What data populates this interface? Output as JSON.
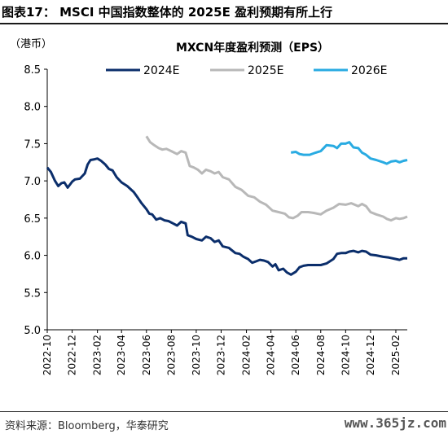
{
  "header": {
    "title": "图表17： MSCI 中国指数整体的 2025E 盈利预期有所上行"
  },
  "footer": {
    "source": "资料来源：Bloomberg，华泰研究",
    "watermark": "www.365jz.com"
  },
  "chart_data": {
    "type": "line",
    "title": "MXCN年度盈利预测（EPS）",
    "unit": "（港币）",
    "ylim": [
      5.0,
      8.5
    ],
    "yticks": [
      "5.0",
      "5.5",
      "6.0",
      "6.5",
      "7.0",
      "7.5",
      "8.0",
      "8.5"
    ],
    "xticks": [
      "2022-10",
      "2022-12",
      "2023-02",
      "2023-04",
      "2023-06",
      "2023-08",
      "2023-10",
      "2023-12",
      "2024-02",
      "2024-04",
      "2024-06",
      "2024-08",
      "2024-10",
      "2024-12",
      "2025-02"
    ],
    "xrange": [
      "2022-10-01",
      "2025-03-01"
    ],
    "legend_position": "top",
    "series": [
      {
        "name": "2024E",
        "color": "#0b2e6b",
        "points": [
          [
            "2022-10-01",
            7.18
          ],
          [
            "2022-10-10",
            7.12
          ],
          [
            "2022-10-20",
            7.0
          ],
          [
            "2022-10-28",
            6.93
          ],
          [
            "2022-11-05",
            6.97
          ],
          [
            "2022-11-12",
            6.98
          ],
          [
            "2022-11-20",
            6.91
          ],
          [
            "2022-12-01",
            6.99
          ],
          [
            "2022-12-08",
            7.02
          ],
          [
            "2022-12-20",
            7.03
          ],
          [
            "2023-01-01",
            7.1
          ],
          [
            "2023-01-08",
            7.22
          ],
          [
            "2023-01-15",
            7.28
          ],
          [
            "2023-01-25",
            7.29
          ],
          [
            "2023-02-01",
            7.3
          ],
          [
            "2023-02-10",
            7.27
          ],
          [
            "2023-02-20",
            7.22
          ],
          [
            "2023-03-01",
            7.16
          ],
          [
            "2023-03-10",
            7.14
          ],
          [
            "2023-03-20",
            7.05
          ],
          [
            "2023-04-01",
            6.98
          ],
          [
            "2023-04-15",
            6.93
          ],
          [
            "2023-05-01",
            6.85
          ],
          [
            "2023-05-10",
            6.78
          ],
          [
            "2023-05-20",
            6.7
          ],
          [
            "2023-06-01",
            6.62
          ],
          [
            "2023-06-08",
            6.56
          ],
          [
            "2023-06-15",
            6.55
          ],
          [
            "2023-06-25",
            6.48
          ],
          [
            "2023-07-05",
            6.5
          ],
          [
            "2023-07-15",
            6.47
          ],
          [
            "2023-07-25",
            6.46
          ],
          [
            "2023-08-05",
            6.43
          ],
          [
            "2023-08-15",
            6.4
          ],
          [
            "2023-08-25",
            6.45
          ],
          [
            "2023-09-05",
            6.43
          ],
          [
            "2023-09-10",
            6.27
          ],
          [
            "2023-09-20",
            6.25
          ],
          [
            "2023-10-01",
            6.22
          ],
          [
            "2023-10-15",
            6.2
          ],
          [
            "2023-10-25",
            6.25
          ],
          [
            "2023-11-05",
            6.23
          ],
          [
            "2023-11-15",
            6.18
          ],
          [
            "2023-11-25",
            6.2
          ],
          [
            "2023-12-05",
            6.12
          ],
          [
            "2023-12-20",
            6.1
          ],
          [
            "2024-01-05",
            6.03
          ],
          [
            "2024-01-15",
            6.02
          ],
          [
            "2024-01-25",
            5.98
          ],
          [
            "2024-02-05",
            5.95
          ],
          [
            "2024-02-15",
            5.9
          ],
          [
            "2024-02-25",
            5.92
          ],
          [
            "2024-03-05",
            5.94
          ],
          [
            "2024-03-15",
            5.93
          ],
          [
            "2024-03-25",
            5.91
          ],
          [
            "2024-04-05",
            5.85
          ],
          [
            "2024-04-12",
            5.88
          ],
          [
            "2024-04-20",
            5.8
          ],
          [
            "2024-05-01",
            5.82
          ],
          [
            "2024-05-10",
            5.77
          ],
          [
            "2024-05-20",
            5.74
          ],
          [
            "2024-06-01",
            5.78
          ],
          [
            "2024-06-10",
            5.84
          ],
          [
            "2024-06-20",
            5.86
          ],
          [
            "2024-07-01",
            5.87
          ],
          [
            "2024-07-15",
            5.87
          ],
          [
            "2024-08-01",
            5.87
          ],
          [
            "2024-08-15",
            5.89
          ],
          [
            "2024-09-01",
            5.95
          ],
          [
            "2024-09-10",
            6.02
          ],
          [
            "2024-09-20",
            6.03
          ],
          [
            "2024-10-01",
            6.03
          ],
          [
            "2024-10-10",
            6.05
          ],
          [
            "2024-10-20",
            6.06
          ],
          [
            "2024-11-01",
            6.04
          ],
          [
            "2024-11-10",
            6.06
          ],
          [
            "2024-11-20",
            6.05
          ],
          [
            "2024-12-01",
            6.01
          ],
          [
            "2024-12-15",
            6.0
          ],
          [
            "2025-01-01",
            5.98
          ],
          [
            "2025-01-15",
            5.97
          ],
          [
            "2025-02-01",
            5.95
          ],
          [
            "2025-02-10",
            5.94
          ],
          [
            "2025-02-20",
            5.96
          ],
          [
            "2025-03-01",
            5.96
          ]
        ]
      },
      {
        "name": "2025E",
        "color": "#b8b8b8",
        "points": [
          [
            "2023-06-01",
            7.6
          ],
          [
            "2023-06-10",
            7.52
          ],
          [
            "2023-06-20",
            7.48
          ],
          [
            "2023-07-01",
            7.44
          ],
          [
            "2023-07-10",
            7.42
          ],
          [
            "2023-07-20",
            7.43
          ],
          [
            "2023-08-01",
            7.4
          ],
          [
            "2023-08-15",
            7.36
          ],
          [
            "2023-08-25",
            7.4
          ],
          [
            "2023-09-05",
            7.38
          ],
          [
            "2023-09-15",
            7.2
          ],
          [
            "2023-09-25",
            7.18
          ],
          [
            "2023-10-05",
            7.15
          ],
          [
            "2023-10-15",
            7.1
          ],
          [
            "2023-10-25",
            7.15
          ],
          [
            "2023-11-05",
            7.13
          ],
          [
            "2023-11-15",
            7.1
          ],
          [
            "2023-11-25",
            7.12
          ],
          [
            "2023-12-05",
            7.05
          ],
          [
            "2023-12-20",
            7.02
          ],
          [
            "2024-01-05",
            6.92
          ],
          [
            "2024-01-20",
            6.88
          ],
          [
            "2024-02-05",
            6.8
          ],
          [
            "2024-02-20",
            6.78
          ],
          [
            "2024-03-05",
            6.72
          ],
          [
            "2024-03-20",
            6.68
          ],
          [
            "2024-04-05",
            6.6
          ],
          [
            "2024-04-20",
            6.58
          ],
          [
            "2024-05-05",
            6.56
          ],
          [
            "2024-05-15",
            6.51
          ],
          [
            "2024-05-25",
            6.5
          ],
          [
            "2024-06-05",
            6.53
          ],
          [
            "2024-06-15",
            6.58
          ],
          [
            "2024-07-01",
            6.58
          ],
          [
            "2024-07-15",
            6.57
          ],
          [
            "2024-08-01",
            6.55
          ],
          [
            "2024-08-15",
            6.6
          ],
          [
            "2024-09-01",
            6.64
          ],
          [
            "2024-09-15",
            6.69
          ],
          [
            "2024-10-01",
            6.68
          ],
          [
            "2024-10-15",
            6.7
          ],
          [
            "2024-11-01",
            6.66
          ],
          [
            "2024-11-10",
            6.69
          ],
          [
            "2024-11-20",
            6.66
          ],
          [
            "2024-12-01",
            6.58
          ],
          [
            "2024-12-15",
            6.55
          ],
          [
            "2025-01-01",
            6.52
          ],
          [
            "2025-01-10",
            6.49
          ],
          [
            "2025-01-20",
            6.47
          ],
          [
            "2025-02-01",
            6.5
          ],
          [
            "2025-02-10",
            6.49
          ],
          [
            "2025-02-20",
            6.5
          ],
          [
            "2025-03-01",
            6.52
          ]
        ]
      },
      {
        "name": "2026E",
        "color": "#29abe2",
        "points": [
          [
            "2024-05-20",
            7.38
          ],
          [
            "2024-06-01",
            7.39
          ],
          [
            "2024-06-10",
            7.36
          ],
          [
            "2024-06-20",
            7.35
          ],
          [
            "2024-07-05",
            7.35
          ],
          [
            "2024-07-20",
            7.38
          ],
          [
            "2024-08-01",
            7.4
          ],
          [
            "2024-08-15",
            7.48
          ],
          [
            "2024-09-01",
            7.47
          ],
          [
            "2024-09-10",
            7.44
          ],
          [
            "2024-09-20",
            7.5
          ],
          [
            "2024-10-01",
            7.5
          ],
          [
            "2024-10-10",
            7.52
          ],
          [
            "2024-10-20",
            7.45
          ],
          [
            "2024-11-01",
            7.44
          ],
          [
            "2024-11-10",
            7.38
          ],
          [
            "2024-11-20",
            7.35
          ],
          [
            "2024-12-01",
            7.3
          ],
          [
            "2024-12-15",
            7.28
          ],
          [
            "2025-01-01",
            7.25
          ],
          [
            "2025-01-10",
            7.23
          ],
          [
            "2025-01-20",
            7.26
          ],
          [
            "2025-02-01",
            7.27
          ],
          [
            "2025-02-10",
            7.25
          ],
          [
            "2025-02-20",
            7.27
          ],
          [
            "2025-03-01",
            7.28
          ]
        ]
      }
    ]
  }
}
